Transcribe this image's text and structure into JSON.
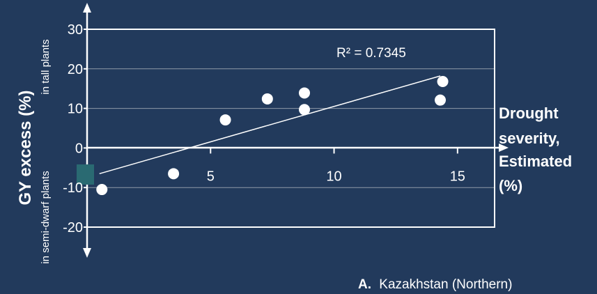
{
  "chart_data": {
    "type": "scatter",
    "title": "",
    "ylabel": "GY excess (%)",
    "ylabel_top": "in tall plants",
    "ylabel_bottom": "in semi-dwarf plants",
    "xlabel_lines": [
      "Drought",
      "severity,",
      "Estimated",
      "(%)"
    ],
    "panel_label_bold": "A.",
    "panel_label_text": "Kazakhstan (Northern)",
    "xlim": [
      0,
      16.5
    ],
    "ylim": [
      -20,
      30
    ],
    "xticks": [
      5,
      10,
      15
    ],
    "yticks": [
      30,
      20,
      10,
      0,
      -10,
      -20
    ],
    "grid": true,
    "points": [
      {
        "x": 0.6,
        "y": -10.5
      },
      {
        "x": 3.5,
        "y": -6.5
      },
      {
        "x": 5.6,
        "y": 7.1
      },
      {
        "x": 7.3,
        "y": 12.4
      },
      {
        "x": 8.8,
        "y": 9.7
      },
      {
        "x": 8.8,
        "y": 13.9
      },
      {
        "x": 14.3,
        "y": 12.1
      },
      {
        "x": 14.4,
        "y": 16.8
      }
    ],
    "trendline": {
      "x": [
        0.5,
        14.3
      ],
      "y": [
        -6.5,
        18.2
      ]
    },
    "annotation": "R² = 0.7345"
  }
}
